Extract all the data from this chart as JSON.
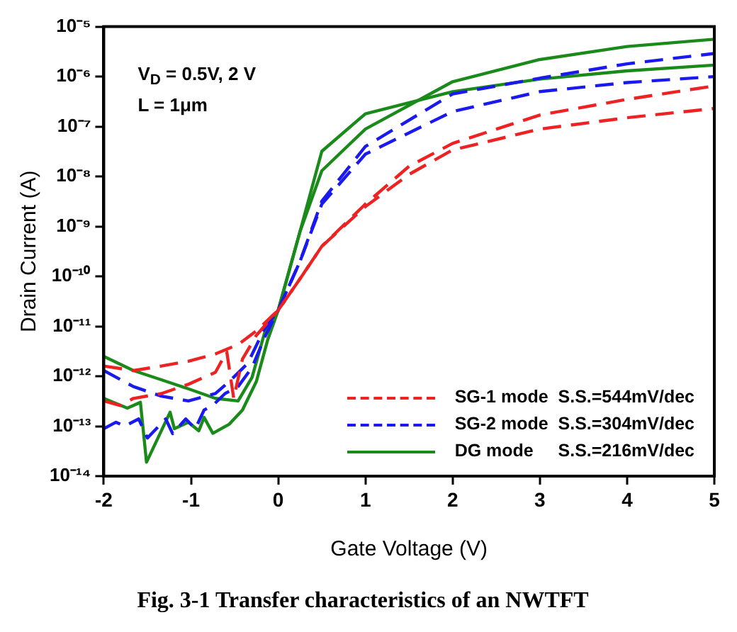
{
  "chart_data": {
    "type": "line",
    "title": "Fig. 3-1 Transfer characteristics of an NWTFT",
    "xlabel": "Gate Voltage (V)",
    "ylabel": "Drain Current (A)",
    "annotations": [
      "V$_{D}$ = 0.5V, 2 V",
      "L = 1μm"
    ],
    "log": "y",
    "grid": false,
    "legend": "bottom right",
    "marker": "none",
    "xlim": [
      -2,
      5
    ],
    "xticks": [
      -2,
      -1,
      0,
      1,
      2,
      3,
      4,
      5
    ],
    "ylim": [
      1e-14,
      1e-05
    ],
    "yticks": [
      {
        "value": 1e-14,
        "label": "10⁻¹⁴"
      },
      {
        "value": 1e-13,
        "label": "10⁻¹³"
      },
      {
        "value": 1e-12,
        "label": "10⁻¹²"
      },
      {
        "value": 1e-11,
        "label": "10⁻¹¹"
      },
      {
        "value": 1e-10,
        "label": "10⁻¹⁰"
      },
      {
        "value": 1e-09,
        "label": "10⁻⁹"
      },
      {
        "value": 1e-08,
        "label": "10⁻⁸"
      },
      {
        "value": 1e-07,
        "label": "10⁻⁷"
      },
      {
        "value": 1e-06,
        "label": "10⁻⁶"
      },
      {
        "value": 1e-05,
        "label": "10⁻⁵"
      }
    ],
    "series": [
      {
        "name": "SG-1 mode  S.S.=544mV/dec",
        "color": "#ee2222",
        "line_style": "dashed",
        "x": [
          -2,
          -1.66,
          -1.34,
          -1.03,
          -0.72,
          -0.46,
          -0.25,
          0,
          0.25,
          0.5,
          1,
          1.5,
          2,
          3,
          4,
          5
        ],
        "values": [
          1.6e-12,
          1.3e-12,
          1.6e-12,
          2e-12,
          2.8e-12,
          4.3e-12,
          8.1e-12,
          2.1e-11,
          8.9e-11,
          4e-10,
          2.8e-09,
          1.6e-08,
          4.6e-08,
          1.7e-07,
          3.5e-07,
          6.5e-07
        ]
      },
      {
        "color": "#ee2222",
        "line_style": "dashed",
        "x": [
          -2,
          -1.81,
          -1.66,
          -1.34,
          -1.03,
          -0.72,
          -0.59,
          -0.51,
          -0.41,
          -0.25,
          0,
          0.25,
          0.5,
          1,
          1.5,
          2,
          3,
          4,
          5
        ],
        "values": [
          3.2e-13,
          2.6e-13,
          3.6e-13,
          4.5e-13,
          6.9e-13,
          1.2e-12,
          3.1e-12,
          3.6e-13,
          2.2e-12,
          6.6e-12,
          2.1e-11,
          8.9e-11,
          4e-10,
          2.5e-09,
          1.1e-08,
          3.4e-08,
          8.9e-08,
          1.5e-07,
          2.3e-07
        ]
      },
      {
        "name": "SG-2 mode  S.S.=304mV/dec",
        "color": "#1a1aee",
        "line_style": "dashed",
        "x": [
          -2,
          -1.66,
          -1.34,
          -1.03,
          -0.72,
          -0.56,
          -0.35,
          -0.17,
          0,
          0.25,
          0.5,
          1,
          2,
          3,
          4,
          5
        ],
        "values": [
          1.3e-12,
          6.2e-13,
          4e-13,
          3.2e-13,
          4.5e-13,
          7.9e-13,
          1.8e-12,
          8.1e-12,
          2.1e-11,
          2e-10,
          3.2e-09,
          4e-08,
          4.5e-07,
          9.3e-07,
          1.8e-06,
          2.9e-06
        ]
      },
      {
        "color": "#1a1aee",
        "line_style": "dashed",
        "x": [
          -2,
          -1.86,
          -1.76,
          -1.6,
          -1.5,
          -1.29,
          -1.21,
          -1.06,
          -0.95,
          -0.85,
          -0.75,
          -0.61,
          -0.46,
          -0.3,
          -0.15,
          0,
          0.25,
          0.5,
          1,
          2,
          3,
          4,
          5
        ],
        "values": [
          8.9e-14,
          1.2e-13,
          1e-13,
          1.4e-13,
          5.8e-14,
          1.4e-13,
          7.1e-14,
          1.4e-13,
          8.9e-14,
          2.1e-13,
          2.6e-13,
          4.5e-13,
          6.2e-13,
          1.5e-12,
          6.3e-12,
          2.1e-11,
          2e-10,
          2.8e-09,
          2.8e-08,
          2e-07,
          5e-07,
          7.6e-07,
          1e-06
        ]
      },
      {
        "name": "DG mode     S.S.=216mV/dec",
        "color": "#1a8a1a",
        "line_style": "solid",
        "x": [
          -2,
          -1.66,
          -1.34,
          -1.03,
          -0.72,
          -0.46,
          -0.3,
          -0.15,
          0,
          0.25,
          0.5,
          1,
          2,
          3,
          4,
          5
        ],
        "values": [
          2.5e-12,
          1.3e-12,
          8.5e-13,
          5.6e-13,
          3.6e-13,
          3.2e-13,
          9.5e-13,
          8.1e-12,
          2.1e-11,
          7.9e-10,
          1.3e-08,
          8.9e-08,
          7.9e-07,
          2.2e-06,
          4e-06,
          5.6e-06
        ]
      },
      {
        "color": "#1a8a1a",
        "line_style": "solid",
        "x": [
          -2,
          -1.73,
          -1.58,
          -1.51,
          -1.24,
          -1.19,
          -1.03,
          -0.91,
          -0.85,
          -0.75,
          -0.56,
          -0.41,
          -0.25,
          -0.12,
          0,
          0.25,
          0.5,
          1,
          2,
          3,
          4,
          5
        ],
        "values": [
          3.6e-13,
          2.3e-13,
          3e-13,
          1.9e-14,
          1.9e-13,
          8.9e-14,
          1.2e-13,
          8.1e-14,
          1.5e-13,
          7.2e-14,
          1.1e-13,
          2.1e-13,
          7.9e-13,
          5.4e-12,
          2.1e-11,
          7.9e-10,
          3.2e-08,
          1.8e-07,
          5e-07,
          8.9e-07,
          1.3e-06,
          1.7e-06
        ]
      }
    ]
  }
}
